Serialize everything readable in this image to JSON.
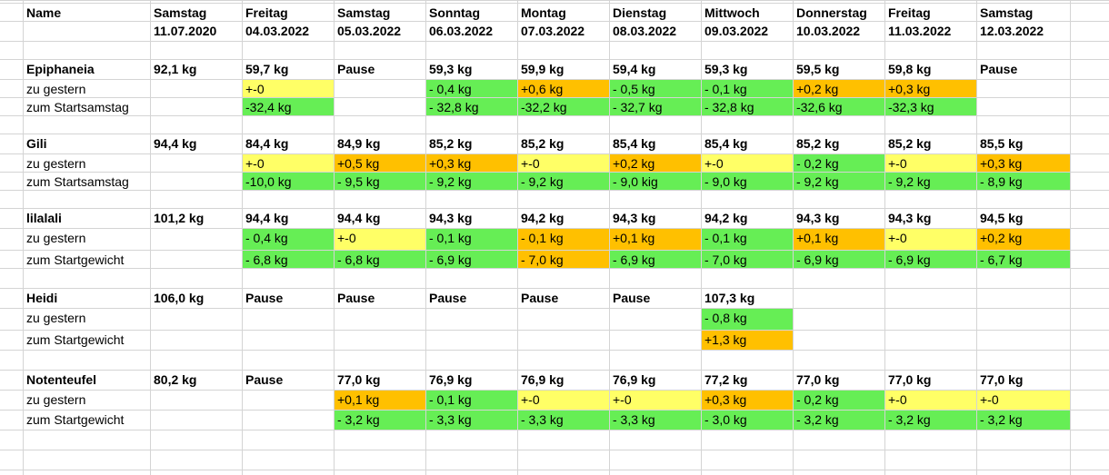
{
  "highlight_colors": {
    "yellow": "#ffff66",
    "green": "#66ee55",
    "orange": "#ffc000"
  },
  "header": {
    "name_label": "Name",
    "days": [
      "Samstag",
      "Freitag",
      "Samstag",
      "Sonntag",
      "Montag",
      "Dienstag",
      "Mittwoch",
      "Donnerstag",
      "Freitag",
      "Samstag"
    ],
    "dates": [
      "11.07.2020",
      "04.03.2022",
      "05.03.2022",
      "06.03.2022",
      "07.03.2022",
      "08.03.2022",
      "09.03.2022",
      "10.03.2022",
      "11.03.2022",
      "12.03.2022"
    ]
  },
  "people": [
    {
      "name": "Epiphaneia",
      "weights": [
        "92,1 kg",
        "59,7 kg",
        "Pause",
        "59,3 kg",
        "59,9 kg",
        "59,4 kg",
        "59,3 kg",
        "59,5 kg",
        "59,8 kg",
        "Pause"
      ],
      "rows": [
        {
          "label": "zu gestern",
          "values": [
            "",
            "+-0",
            "",
            "- 0,4 kg",
            "+0,6 kg",
            "- 0,5 kg",
            "- 0,1 kg",
            "+0,2 kg",
            "+0,3 kg",
            ""
          ],
          "colors": [
            "",
            "yellow",
            "",
            "green",
            "orange",
            "green",
            "green",
            "orange",
            "orange",
            ""
          ]
        },
        {
          "label": "zum Startsamstag",
          "values": [
            "",
            "-32,4 kg",
            "",
            "- 32,8 kg",
            "-32,2 kg",
            "- 32,7 kg",
            "- 32,8 kg",
            "-32,6 kg",
            "-32,3 kg",
            ""
          ],
          "colors": [
            "",
            "green",
            "",
            "green",
            "green",
            "green",
            "green",
            "green",
            "green",
            ""
          ]
        }
      ]
    },
    {
      "name": "Gili",
      "weights": [
        "94,4 kg",
        "84,4 kg",
        "84,9 kg",
        "85,2 kg",
        "85,2 kg",
        "85,4 kg",
        "85,4 kg",
        "85,2 kg",
        "85,2 kg",
        "85,5 kg"
      ],
      "rows": [
        {
          "label": "zu gestern",
          "values": [
            "",
            "+-0",
            "+0,5 kg",
            "+0,3 kg",
            "+-0",
            "+0,2 kg",
            "+-0",
            "- 0,2 kg",
            "+-0",
            "+0,3 kg"
          ],
          "colors": [
            "",
            "yellow",
            "orange",
            "orange",
            "yellow",
            "orange",
            "yellow",
            "green",
            "yellow",
            "orange"
          ]
        },
        {
          "label": "zum Startsamstag",
          "values": [
            "",
            "-10,0 kg",
            "- 9,5 kg",
            "- 9,2 kg",
            "- 9,2 kg",
            "- 9,0 kig",
            "- 9,0 kg",
            "- 9,2 kg",
            "- 9,2 kg",
            "- 8,9 kg"
          ],
          "colors": [
            "",
            "green",
            "green",
            "green",
            "green",
            "green",
            "green",
            "green",
            "green",
            "green"
          ]
        }
      ]
    },
    {
      "name": "lilalali",
      "weights": [
        "101,2 kg",
        "94,4 kg",
        "94,4 kg",
        "94,3 kg",
        "94,2 kg",
        "94,3 kg",
        "94,2 kg",
        "94,3 kg",
        "94,3 kg",
        "94,5 kg"
      ],
      "rows": [
        {
          "label": "zu gestern",
          "values": [
            "",
            "- 0,4 kg",
            "+-0",
            "- 0,1 kg",
            "- 0,1 kg",
            "+0,1 kg",
            "- 0,1 kg",
            "+0,1 kg",
            "+-0",
            "+0,2 kg"
          ],
          "colors": [
            "",
            "green",
            "yellow",
            "green",
            "orange",
            "orange",
            "green",
            "orange",
            "yellow",
            "orange"
          ]
        },
        {
          "label": "zum Startgewicht",
          "values": [
            "",
            "- 6,8 kg",
            "- 6,8 kg",
            "- 6,9 kg",
            "- 7,0 kg",
            "- 6,9 kg",
            "- 7,0 kg",
            "- 6,9 kg",
            "- 6,9 kg",
            "- 6,7 kg"
          ],
          "colors": [
            "",
            "green",
            "green",
            "green",
            "orange",
            "green",
            "green",
            "green",
            "green",
            "green"
          ]
        }
      ]
    },
    {
      "name": "Heidi",
      "weights": [
        "106,0 kg",
        "Pause",
        "Pause",
        "Pause",
        "Pause",
        "Pause",
        "107,3 kg",
        "",
        "",
        ""
      ],
      "rows": [
        {
          "label": "zu gestern",
          "values": [
            "",
            "",
            "",
            "",
            "",
            "",
            "- 0,8 kg",
            "",
            "",
            ""
          ],
          "colors": [
            "",
            "",
            "",
            "",
            "",
            "",
            "green",
            "",
            "",
            ""
          ]
        },
        {
          "label": "zum Startgewicht",
          "values": [
            "",
            "",
            "",
            "",
            "",
            "",
            "+1,3 kg",
            "",
            "",
            ""
          ],
          "colors": [
            "",
            "",
            "",
            "",
            "",
            "",
            "orange",
            "",
            "",
            ""
          ]
        }
      ]
    },
    {
      "name": "Notenteufel",
      "weights": [
        "80,2 kg",
        "Pause",
        "77,0 kg",
        "76,9 kg",
        "76,9  kg",
        "76,9 kg",
        "77,2 kg",
        "77,0 kg",
        "77,0 kg",
        "77,0 kg"
      ],
      "rows": [
        {
          "label": "zu gestern",
          "values": [
            "",
            "",
            "+0,1 kg",
            "- 0,1 kg",
            "+-0",
            "+-0",
            "+0,3 kg",
            "- 0,2 kg",
            "+-0",
            "+-0"
          ],
          "colors": [
            "",
            "",
            "orange",
            "green",
            "yellow",
            "yellow",
            "orange",
            "green",
            "yellow",
            "yellow"
          ]
        },
        {
          "label": "zum Startgewicht",
          "values": [
            "",
            "",
            "- 3,2 kg",
            "- 3,3 kg",
            "- 3,3 kg",
            "- 3,3 kg",
            "- 3,0 kg",
            "- 3,2 kg",
            "- 3,2 kg",
            "- 3,2 kg"
          ],
          "colors": [
            "",
            "",
            "green",
            "green",
            "green",
            "green",
            "green",
            "green",
            "green",
            "green"
          ]
        }
      ]
    }
  ]
}
